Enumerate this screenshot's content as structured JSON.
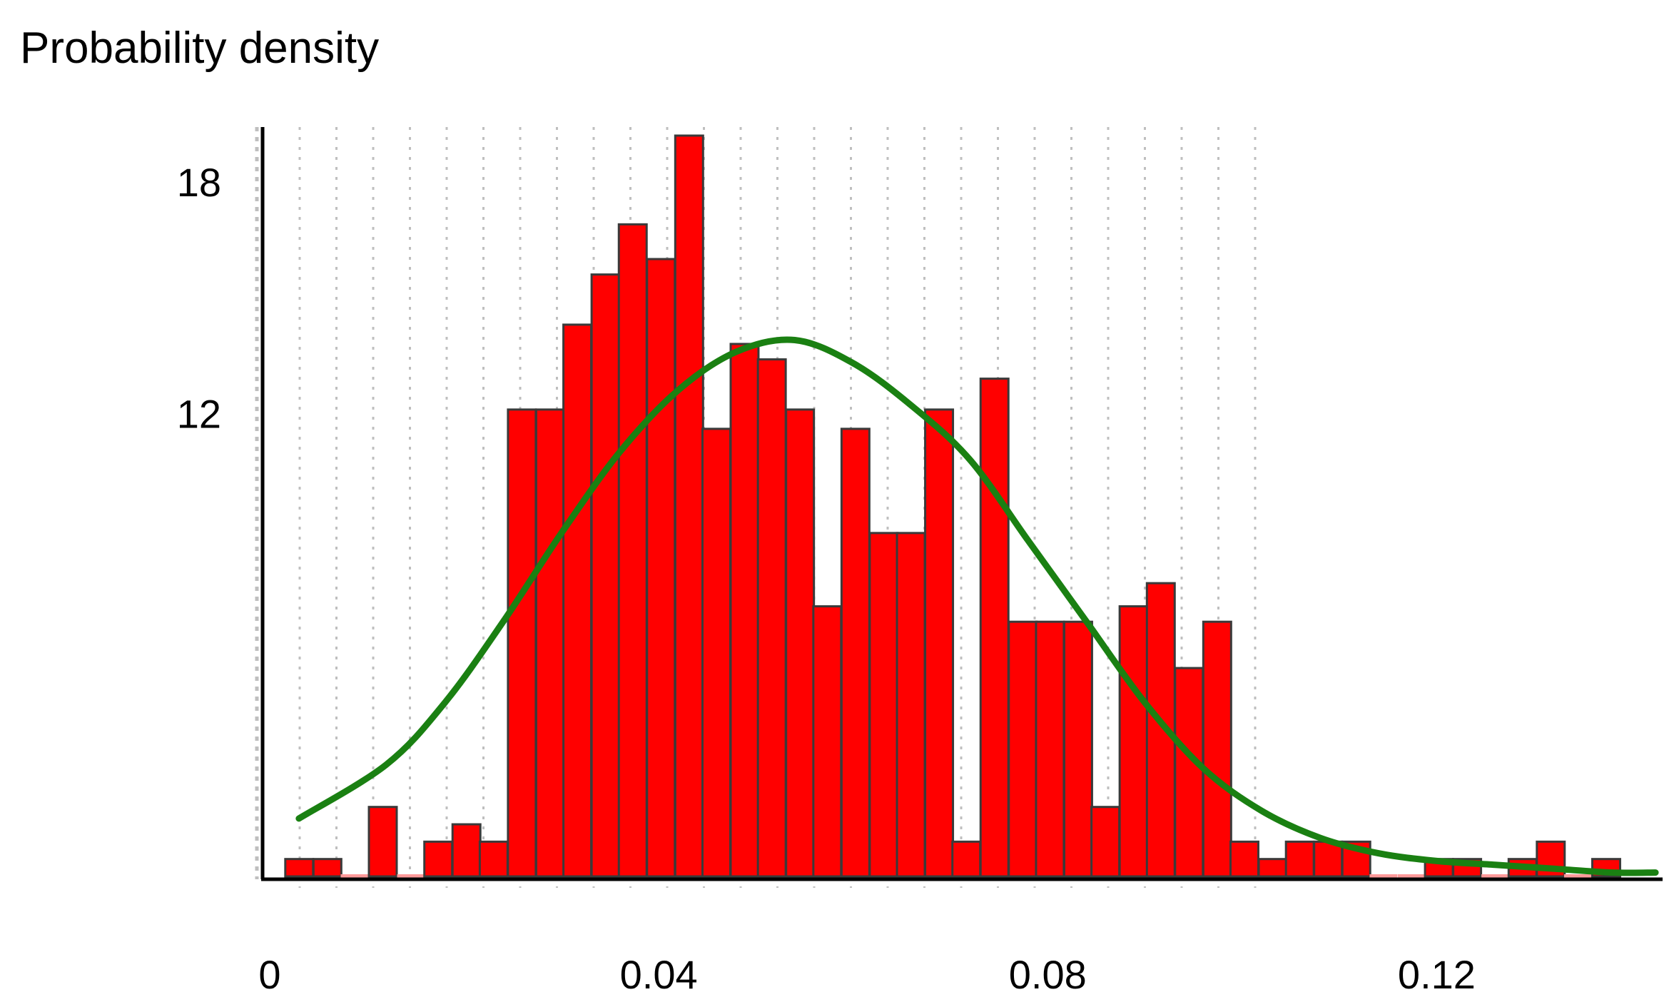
{
  "chart_data": {
    "type": "bar",
    "title": "Probability density",
    "xlabel": "",
    "ylabel": "",
    "xlim": [
      0,
      0.14
    ],
    "ylim": [
      0,
      19.2
    ],
    "x_ticks": [
      {
        "value": 0,
        "label": "0"
      },
      {
        "value": 0.04,
        "label": "0.04"
      },
      {
        "value": 0.08,
        "label": "0.08"
      },
      {
        "value": 0.12,
        "label": "0.12"
      }
    ],
    "y_ticks": [
      {
        "value": 12,
        "label": "12"
      },
      {
        "value": 18,
        "label": "18"
      }
    ],
    "bin_width": 0.00286,
    "bin_starts": [
      0.0016,
      0.0045,
      0.0073,
      0.0102,
      0.0131,
      0.0159,
      0.0188,
      0.0216,
      0.0245,
      0.0274,
      0.0302,
      0.0331,
      0.0359,
      0.0388,
      0.0417,
      0.0445,
      0.0474,
      0.0502,
      0.0531,
      0.0559,
      0.0588,
      0.0617,
      0.0645,
      0.0674,
      0.0702,
      0.0731,
      0.076,
      0.0788,
      0.0817,
      0.0845,
      0.0874,
      0.0902,
      0.0931,
      0.096,
      0.0988,
      0.1017,
      0.1045,
      0.1074,
      0.1103,
      0.1131,
      0.116,
      0.1188,
      0.1217,
      0.1246,
      0.1274,
      0.1303,
      0.1331,
      0.136,
      0.1388
    ],
    "values": [
      0.45,
      0.45,
      0,
      1.8,
      0,
      0.9,
      1.35,
      0.9,
      12.1,
      12.1,
      14.3,
      15.6,
      16.9,
      16.0,
      19.2,
      11.6,
      13.8,
      13.4,
      12.1,
      7.0,
      11.6,
      8.9,
      8.9,
      12.1,
      0.9,
      12.9,
      6.6,
      6.6,
      6.6,
      1.8,
      7.0,
      7.6,
      5.4,
      6.6,
      0.9,
      0.45,
      0.9,
      0.9,
      0.9,
      0,
      0,
      0.45,
      0.45,
      0,
      0.45,
      0.9,
      0,
      0.45
    ],
    "series": [
      {
        "name": "",
        "type": "bar",
        "color": "#ff0000",
        "edge_color": "#3a3a3a"
      },
      {
        "name": "",
        "type": "line",
        "color": "#1a8012",
        "x": [
          0.003,
          0.012,
          0.018,
          0.024,
          0.03,
          0.036,
          0.042,
          0.048,
          0.054,
          0.06,
          0.066,
          0.072,
          0.078,
          0.084,
          0.09,
          0.096,
          0.102,
          0.108,
          0.114,
          0.12,
          0.126,
          0.132,
          0.138,
          0.1425
        ],
        "y": [
          1.5,
          2.9,
          4.5,
          6.6,
          8.9,
          11.0,
          12.6,
          13.6,
          13.9,
          13.3,
          12.2,
          10.8,
          8.7,
          6.6,
          4.5,
          2.8,
          1.7,
          1.0,
          0.6,
          0.4,
          0.3,
          0.2,
          0.1,
          0.1
        ]
      }
    ]
  }
}
